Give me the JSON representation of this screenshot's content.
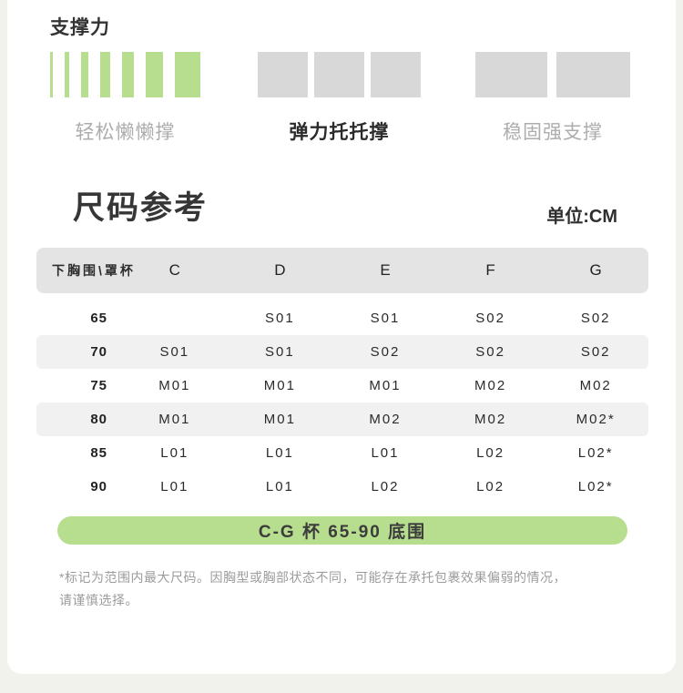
{
  "colors": {
    "page_bg": "#f2f2ec",
    "card_bg": "#ffffff",
    "accent_green": "#b7dd8e",
    "block_gray": "#d8d8d8",
    "table_header_bg": "#e4e4e4",
    "row_shaded_bg": "#f1f1f1"
  },
  "support": {
    "title": "支撑力",
    "levels": [
      {
        "label": "轻松懒懒撑",
        "active": false,
        "color": "#b7dd8e",
        "gap": 13,
        "bar_widths": [
          3,
          5,
          8,
          11,
          13,
          19,
          28
        ]
      },
      {
        "label": "弹力托托撑",
        "active": true,
        "color": "#d8d8d8",
        "gap": 7,
        "bar_widths": [
          55,
          55,
          55
        ]
      },
      {
        "label": "稳固强支撑",
        "active": false,
        "color": "#d8d8d8",
        "gap": 10,
        "bar_widths": [
          79,
          81
        ]
      }
    ]
  },
  "size_reference": {
    "title": "尺码参考",
    "unit": "单位:CM",
    "table": {
      "corner_header": "下胸围\\罩杯",
      "columns": [
        "C",
        "D",
        "E",
        "F",
        "G"
      ],
      "rows": [
        {
          "band": "65",
          "shaded": false,
          "cells": [
            "",
            "S01",
            "S01",
            "S02",
            "S02"
          ]
        },
        {
          "band": "70",
          "shaded": true,
          "cells": [
            "S01",
            "S01",
            "S02",
            "S02",
            "S02"
          ]
        },
        {
          "band": "75",
          "shaded": false,
          "cells": [
            "M01",
            "M01",
            "M01",
            "M02",
            "M02"
          ]
        },
        {
          "band": "80",
          "shaded": true,
          "cells": [
            "M01",
            "M01",
            "M02",
            "M02",
            "M02*"
          ]
        },
        {
          "band": "85",
          "shaded": false,
          "cells": [
            "L01",
            "L01",
            "L01",
            "L02",
            "L02*"
          ]
        },
        {
          "band": "90",
          "shaded": false,
          "cells": [
            "L01",
            "L01",
            "L02",
            "L02",
            "L02*"
          ]
        }
      ]
    },
    "banner": "C-G 杯 65-90 底围",
    "footnote_lines": [
      "*标记为范围内最大尺码。因胸型或胸部状态不同，可能存在承托包裹效果偏弱的情况，",
      "请谨慎选择。"
    ]
  }
}
